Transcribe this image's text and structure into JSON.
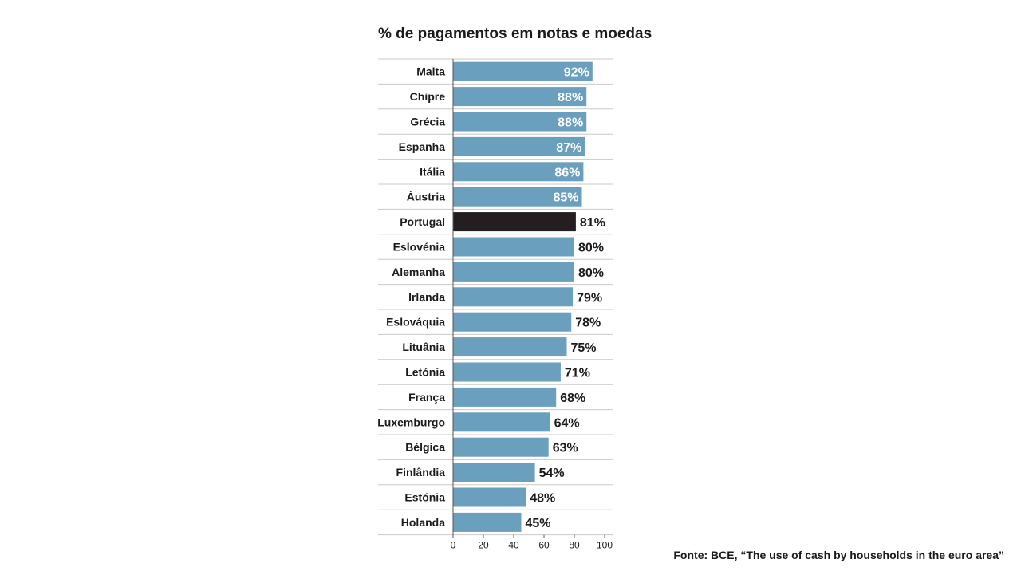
{
  "chart_data": {
    "type": "bar",
    "orientation": "horizontal",
    "title": "% de pagamentos em notas e moedas",
    "categories": [
      "Malta",
      "Chipre",
      "Grécia",
      "Espanha",
      "Itália",
      "Áustria",
      "Portugal",
      "Eslovénia",
      "Alemanha",
      "Irlanda",
      "Eslováquia",
      "Lituânia",
      "Letónia",
      "França",
      "Luxemburgo",
      "Bélgica",
      "Finlândia",
      "Estónia",
      "Holanda"
    ],
    "values": [
      92,
      88,
      88,
      87,
      86,
      85,
      81,
      80,
      80,
      79,
      78,
      75,
      71,
      68,
      64,
      63,
      54,
      48,
      45
    ],
    "value_labels": [
      "92%",
      "88%",
      "88%",
      "87%",
      "86%",
      "85%",
      "81%",
      "80%",
      "80%",
      "79%",
      "78%",
      "75%",
      "71%",
      "68%",
      "64%",
      "63%",
      "54%",
      "48%",
      "45%"
    ],
    "highlight": "Portugal",
    "xlim": [
      0,
      100
    ],
    "xticks": [
      0,
      20,
      40,
      60,
      80,
      100
    ],
    "colors": {
      "bar": "#6a9fbe",
      "highlight": "#231f20",
      "row_line": "#c9c9c9",
      "label_inside": "#ffffff",
      "label_outside": "#1a1a1a"
    },
    "grid": false,
    "legend": "none",
    "source": "Fonte: BCE, “The use of cash by households in the euro area”"
  }
}
